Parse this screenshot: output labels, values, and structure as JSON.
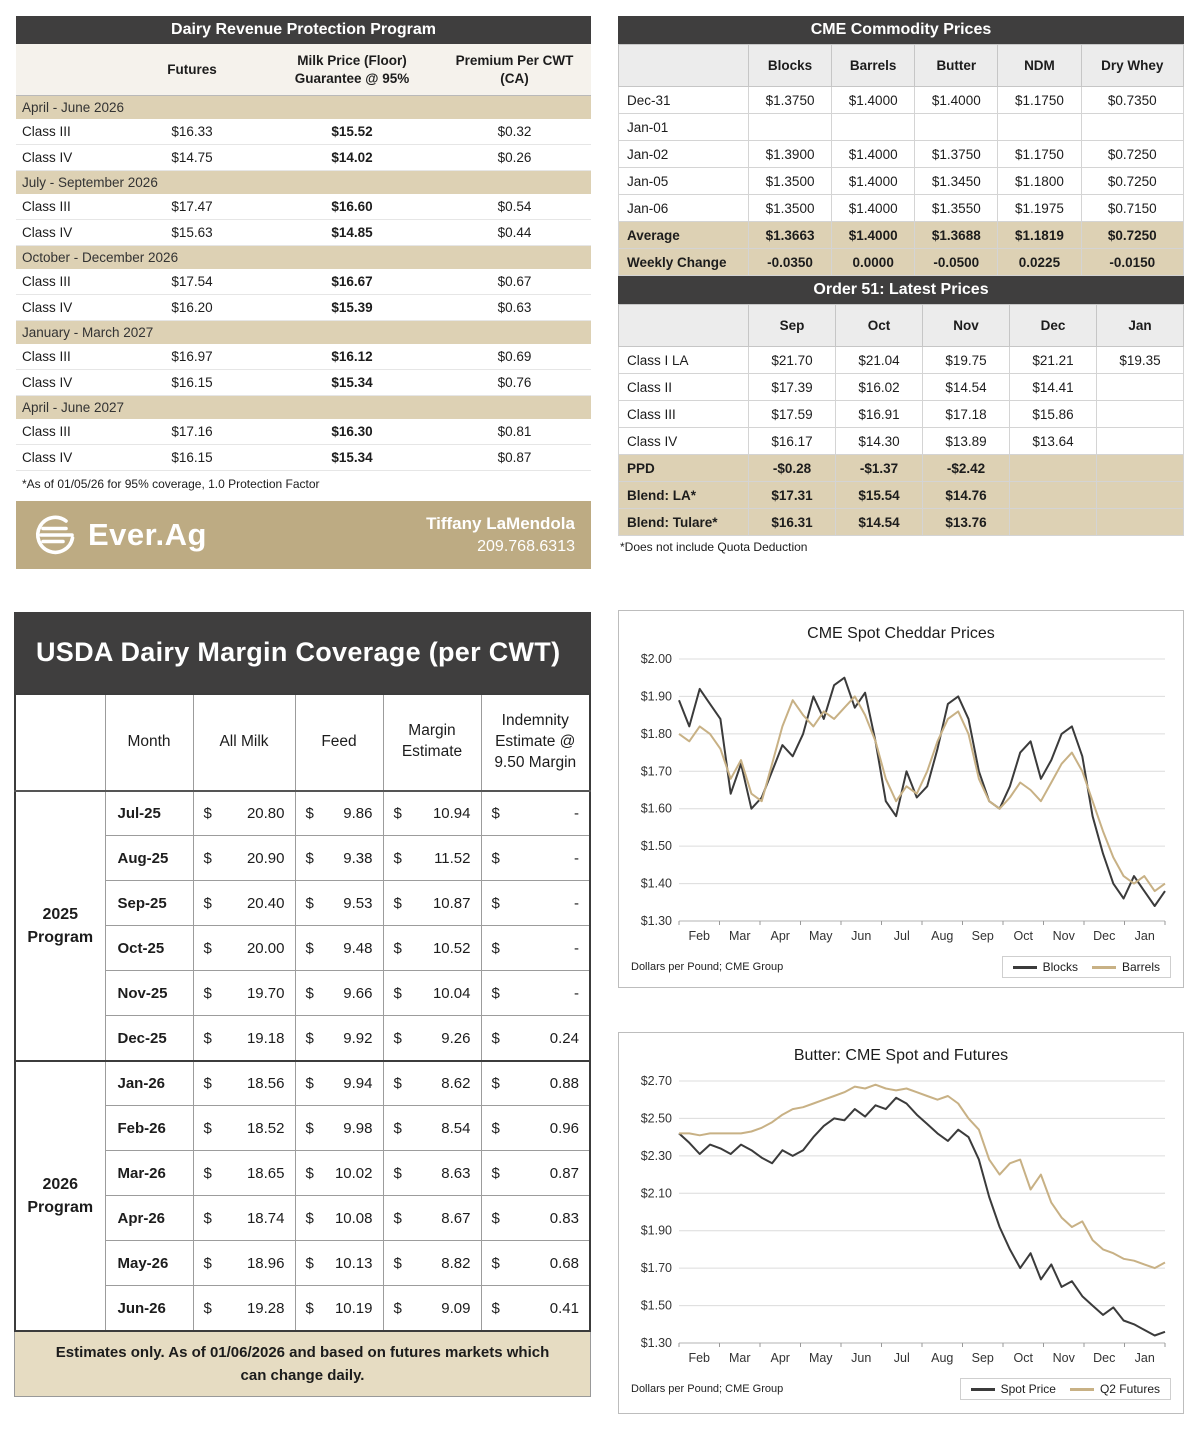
{
  "drp": {
    "title": "Dairy Revenue Protection Program",
    "col_headers": {
      "futures": "Futures",
      "floor_l1": "Milk Price (Floor)",
      "floor_l2": "Guarantee @ 95%",
      "premium_l1": "Premium Per CWT",
      "premium_l2": "(CA)"
    },
    "sections": [
      {
        "label": "April - June 2026",
        "rows": [
          {
            "class": "Class III",
            "futures": "$16.33",
            "floor": "$15.52",
            "premium": "$0.32"
          },
          {
            "class": "Class IV",
            "futures": "$14.75",
            "floor": "$14.02",
            "premium": "$0.26"
          }
        ]
      },
      {
        "label": "July - September 2026",
        "rows": [
          {
            "class": "Class III",
            "futures": "$17.47",
            "floor": "$16.60",
            "premium": "$0.54"
          },
          {
            "class": "Class IV",
            "futures": "$15.63",
            "floor": "$14.85",
            "premium": "$0.44"
          }
        ]
      },
      {
        "label": "October - December 2026",
        "rows": [
          {
            "class": "Class III",
            "futures": "$17.54",
            "floor": "$16.67",
            "premium": "$0.67"
          },
          {
            "class": "Class IV",
            "futures": "$16.20",
            "floor": "$15.39",
            "premium": "$0.63"
          }
        ]
      },
      {
        "label": "January - March 2027",
        "rows": [
          {
            "class": "Class III",
            "futures": "$16.97",
            "floor": "$16.12",
            "premium": "$0.69"
          },
          {
            "class": "Class IV",
            "futures": "$16.15",
            "floor": "$15.34",
            "premium": "$0.76"
          }
        ]
      },
      {
        "label": "April - June 2027",
        "rows": [
          {
            "class": "Class III",
            "futures": "$17.16",
            "floor": "$16.30",
            "premium": "$0.81"
          },
          {
            "class": "Class IV",
            "futures": "$16.15",
            "floor": "$15.34",
            "premium": "$0.87"
          }
        ]
      }
    ],
    "footnote": "*As of 01/05/26 for 95% coverage, 1.0 Protection Factor",
    "brand": {
      "name": "Ever.Ag",
      "contact_name": "Tiffany LaMendola",
      "contact_phone": "209.768.6313"
    }
  },
  "cme": {
    "title": "CME Commodity Prices",
    "columns": [
      "Blocks",
      "Barrels",
      "Butter",
      "NDM",
      "Dry Whey"
    ],
    "rows": [
      {
        "label": "Dec-31",
        "values": [
          "$1.3750",
          "$1.4000",
          "$1.4000",
          "$1.1750",
          "$0.7350"
        ],
        "highlight": false
      },
      {
        "label": "Jan-01",
        "values": [
          "",
          "",
          "",
          "",
          ""
        ],
        "highlight": false
      },
      {
        "label": "Jan-02",
        "values": [
          "$1.3900",
          "$1.4000",
          "$1.3750",
          "$1.1750",
          "$0.7250"
        ],
        "highlight": false
      },
      {
        "label": "Jan-05",
        "values": [
          "$1.3500",
          "$1.4000",
          "$1.3450",
          "$1.1800",
          "$0.7250"
        ],
        "highlight": false
      },
      {
        "label": "Jan-06",
        "values": [
          "$1.3500",
          "$1.4000",
          "$1.3550",
          "$1.1975",
          "$0.7150"
        ],
        "highlight": false
      },
      {
        "label": "Average",
        "values": [
          "$1.3663",
          "$1.4000",
          "$1.3688",
          "$1.1819",
          "$0.7250"
        ],
        "highlight": true
      },
      {
        "label": "Weekly Change",
        "values": [
          "-0.0350",
          "0.0000",
          "-0.0500",
          "0.0225",
          "-0.0150"
        ],
        "highlight": true
      }
    ]
  },
  "order51": {
    "title": "Order 51: Latest Prices",
    "columns": [
      "Sep",
      "Oct",
      "Nov",
      "Dec",
      "Jan"
    ],
    "rows": [
      {
        "label": "Class I LA",
        "values": [
          "$21.70",
          "$21.04",
          "$19.75",
          "$21.21",
          "$19.35"
        ],
        "highlight": false
      },
      {
        "label": "Class II",
        "values": [
          "$17.39",
          "$16.02",
          "$14.54",
          "$14.41",
          ""
        ],
        "highlight": false
      },
      {
        "label": "Class III",
        "values": [
          "$17.59",
          "$16.91",
          "$17.18",
          "$15.86",
          ""
        ],
        "highlight": false
      },
      {
        "label": "Class IV",
        "values": [
          "$16.17",
          "$14.30",
          "$13.89",
          "$13.64",
          ""
        ],
        "highlight": false
      },
      {
        "label": "PPD",
        "values": [
          "-$0.28",
          "-$1.37",
          "-$2.42",
          "",
          ""
        ],
        "highlight": true
      },
      {
        "label": "Blend: LA*",
        "values": [
          "$17.31",
          "$15.54",
          "$14.76",
          "",
          ""
        ],
        "highlight": true
      },
      {
        "label": "Blend: Tulare*",
        "values": [
          "$16.31",
          "$14.54",
          "$13.76",
          "",
          ""
        ],
        "highlight": true
      }
    ],
    "footnote": "*Does not include Quota Deduction"
  },
  "dmc": {
    "title": "USDA Dairy Margin Coverage  (per CWT)",
    "headers": {
      "month": "Month",
      "all_milk": "All Milk",
      "feed": "Feed",
      "margin_l1": "Margin",
      "margin_l2": "Estimate",
      "indem_l1": "Indemnity",
      "indem_l2": "Estimate @",
      "indem_l3": "9.50 Margin"
    },
    "programs": [
      {
        "label": "2025 Program",
        "rows": [
          {
            "month": "Jul-25",
            "all_milk": "20.80",
            "feed": "9.86",
            "margin": "10.94",
            "indemnity": "-"
          },
          {
            "month": "Aug-25",
            "all_milk": "20.90",
            "feed": "9.38",
            "margin": "11.52",
            "indemnity": "-"
          },
          {
            "month": "Sep-25",
            "all_milk": "20.40",
            "feed": "9.53",
            "margin": "10.87",
            "indemnity": "-"
          },
          {
            "month": "Oct-25",
            "all_milk": "20.00",
            "feed": "9.48",
            "margin": "10.52",
            "indemnity": "-"
          },
          {
            "month": "Nov-25",
            "all_milk": "19.70",
            "feed": "9.66",
            "margin": "10.04",
            "indemnity": "-"
          },
          {
            "month": "Dec-25",
            "all_milk": "19.18",
            "feed": "9.92",
            "margin": "9.26",
            "indemnity": "0.24"
          }
        ]
      },
      {
        "label": "2026 Program",
        "rows": [
          {
            "month": "Jan-26",
            "all_milk": "18.56",
            "feed": "9.94",
            "margin": "8.62",
            "indemnity": "0.88"
          },
          {
            "month": "Feb-26",
            "all_milk": "18.52",
            "feed": "9.98",
            "margin": "8.54",
            "indemnity": "0.96"
          },
          {
            "month": "Mar-26",
            "all_milk": "18.65",
            "feed": "10.02",
            "margin": "8.63",
            "indemnity": "0.87"
          },
          {
            "month": "Apr-26",
            "all_milk": "18.74",
            "feed": "10.08",
            "margin": "8.67",
            "indemnity": "0.83"
          },
          {
            "month": "May-26",
            "all_milk": "18.96",
            "feed": "10.13",
            "margin": "8.82",
            "indemnity": "0.68"
          },
          {
            "month": "Jun-26",
            "all_milk": "19.28",
            "feed": "10.19",
            "margin": "9.09",
            "indemnity": "0.41"
          }
        ]
      }
    ],
    "footer": "Estimates only. As of 01/06/2026 and based on futures markets which can change daily."
  },
  "chart_data": [
    {
      "type": "line",
      "title": "CME Spot Cheddar Prices",
      "source": "Dollars per Pound; CME Group",
      "xlabel": "",
      "ylabel": "",
      "ylim": [
        1.3,
        2.0
      ],
      "ystep": 0.1,
      "grid": true,
      "legend_position": "bottom-right",
      "categories": [
        "Feb",
        "Mar",
        "Apr",
        "May",
        "Jun",
        "Jul",
        "Aug",
        "Sep",
        "Oct",
        "Nov",
        "Dec",
        "Jan"
      ],
      "series": [
        {
          "name": "Blocks",
          "color": "#3b3b3b",
          "values": [
            1.89,
            1.82,
            1.92,
            1.88,
            1.84,
            1.64,
            1.72,
            1.6,
            1.63,
            1.7,
            1.77,
            1.74,
            1.8,
            1.9,
            1.84,
            1.93,
            1.95,
            1.87,
            1.91,
            1.78,
            1.62,
            1.58,
            1.7,
            1.63,
            1.66,
            1.76,
            1.88,
            1.9,
            1.84,
            1.7,
            1.62,
            1.6,
            1.66,
            1.75,
            1.78,
            1.68,
            1.73,
            1.8,
            1.82,
            1.74,
            1.58,
            1.48,
            1.4,
            1.36,
            1.42,
            1.38,
            1.34,
            1.38
          ]
        },
        {
          "name": "Barrels",
          "color": "#c8b185",
          "values": [
            1.8,
            1.78,
            1.82,
            1.8,
            1.76,
            1.68,
            1.73,
            1.64,
            1.62,
            1.72,
            1.82,
            1.89,
            1.85,
            1.82,
            1.86,
            1.84,
            1.87,
            1.9,
            1.85,
            1.78,
            1.68,
            1.62,
            1.66,
            1.64,
            1.7,
            1.78,
            1.84,
            1.86,
            1.8,
            1.68,
            1.62,
            1.6,
            1.63,
            1.67,
            1.65,
            1.62,
            1.67,
            1.72,
            1.75,
            1.7,
            1.62,
            1.54,
            1.47,
            1.42,
            1.4,
            1.42,
            1.38,
            1.4
          ]
        }
      ]
    },
    {
      "type": "line",
      "title": "Butter: CME Spot and Futures",
      "source": "Dollars per Pound; CME Group",
      "xlabel": "",
      "ylabel": "",
      "ylim": [
        1.3,
        2.7
      ],
      "ystep": 0.2,
      "grid": true,
      "legend_position": "bottom-right",
      "categories": [
        "Feb",
        "Mar",
        "Apr",
        "May",
        "Jun",
        "Jul",
        "Aug",
        "Sep",
        "Oct",
        "Nov",
        "Dec",
        "Jan"
      ],
      "series": [
        {
          "name": "Spot Price",
          "color": "#3b3b3b",
          "values": [
            2.42,
            2.37,
            2.31,
            2.36,
            2.34,
            2.31,
            2.36,
            2.33,
            2.29,
            2.26,
            2.33,
            2.3,
            2.33,
            2.4,
            2.46,
            2.5,
            2.49,
            2.55,
            2.51,
            2.57,
            2.55,
            2.61,
            2.58,
            2.52,
            2.47,
            2.42,
            2.38,
            2.44,
            2.4,
            2.28,
            2.08,
            1.92,
            1.8,
            1.7,
            1.78,
            1.64,
            1.72,
            1.6,
            1.63,
            1.55,
            1.5,
            1.45,
            1.49,
            1.42,
            1.4,
            1.37,
            1.34,
            1.36
          ]
        },
        {
          "name": "Q2 Futures",
          "color": "#c8b185",
          "values": [
            2.42,
            2.42,
            2.41,
            2.42,
            2.42,
            2.42,
            2.42,
            2.43,
            2.45,
            2.48,
            2.52,
            2.55,
            2.56,
            2.58,
            2.6,
            2.62,
            2.64,
            2.67,
            2.66,
            2.68,
            2.66,
            2.65,
            2.66,
            2.64,
            2.62,
            2.6,
            2.62,
            2.58,
            2.5,
            2.44,
            2.28,
            2.2,
            2.26,
            2.28,
            2.12,
            2.2,
            2.05,
            1.97,
            1.92,
            1.95,
            1.85,
            1.8,
            1.78,
            1.75,
            1.74,
            1.72,
            1.7,
            1.73
          ]
        }
      ]
    }
  ],
  "colors": {
    "header_dark": "#3f3e3e",
    "tan_highlight": "#ddd1b4",
    "brand_bar": "#bdab83",
    "footer_tan": "#e6dcc2",
    "line_dark": "#3b3b3b",
    "line_tan": "#c8b185"
  }
}
